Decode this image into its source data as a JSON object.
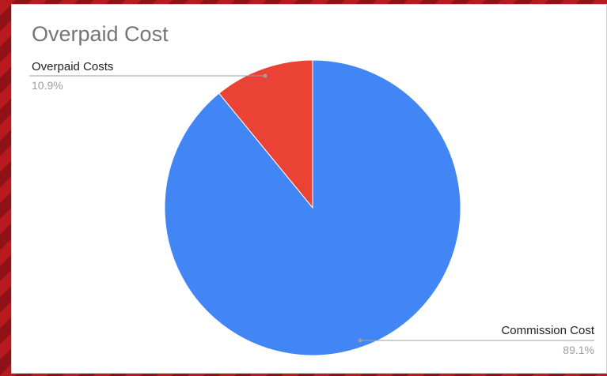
{
  "chart_data": {
    "type": "pie",
    "title": "Overpaid Cost",
    "slices": [
      {
        "label": "Overpaid Costs",
        "value": 10.9,
        "percent_label": "10.9%",
        "color": "#ea4335"
      },
      {
        "label": "Commission Cost",
        "value": 89.1,
        "percent_label": "89.1%",
        "color": "#4285f4"
      }
    ],
    "start_angle_deg": 0,
    "direction": "counterclockwise-from-top",
    "legend": "none"
  }
}
